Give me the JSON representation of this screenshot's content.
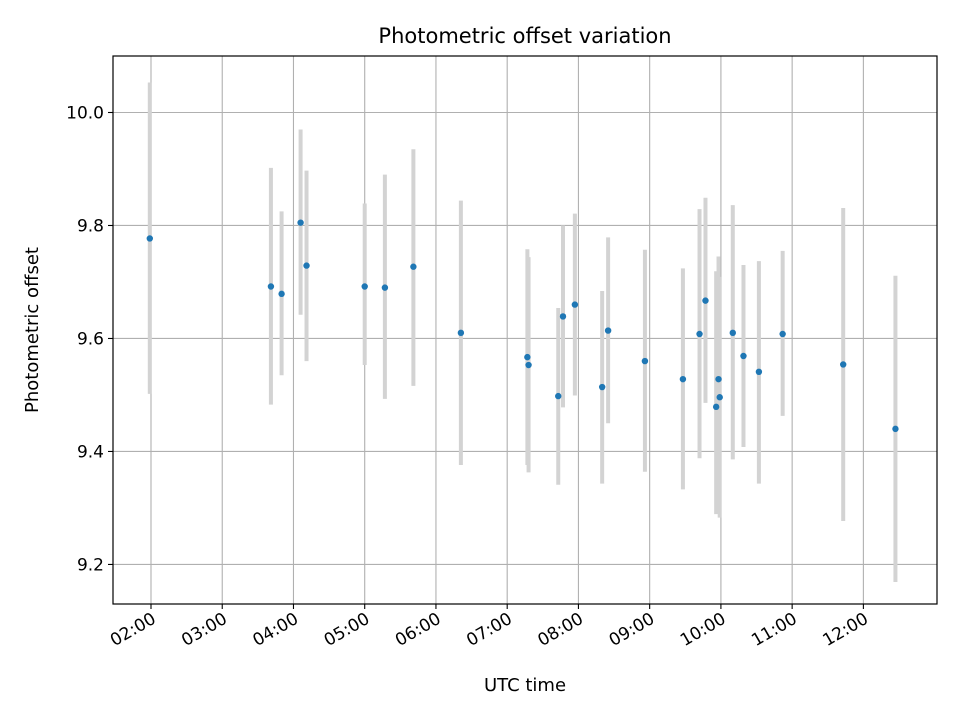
{
  "chart_data": {
    "type": "scatter",
    "title": "Photometric offset variation",
    "xlabel": "UTC time",
    "ylabel": "Photometric offset",
    "x_tick_labels": [
      "02:00",
      "03:00",
      "04:00",
      "05:00",
      "06:00",
      "07:00",
      "08:00",
      "09:00",
      "10:00",
      "11:00",
      "12:00"
    ],
    "x_tick_hours": [
      2,
      3,
      4,
      5,
      6,
      7,
      8,
      9,
      10,
      11,
      12
    ],
    "y_ticks": [
      9.2,
      9.4,
      9.6,
      9.8,
      10.0
    ],
    "y_tick_labels": [
      "9.2",
      "9.4",
      "9.6",
      "9.8",
      "10.0"
    ],
    "xlim": [
      "01:28",
      "13:02"
    ],
    "ylim": [
      9.13,
      10.1
    ],
    "grid": true,
    "colors": {
      "point": "#1f77b4",
      "errorbar": "#d3d3d3",
      "grid": "#b0b0b0"
    },
    "points": [
      {
        "time": "01:59",
        "y": 9.777,
        "ylow": 9.502,
        "yhigh": 10.053
      },
      {
        "time": "03:41",
        "y": 9.692,
        "ylow": 9.483,
        "yhigh": 9.902
      },
      {
        "time": "03:50",
        "y": 9.679,
        "ylow": 9.535,
        "yhigh": 9.825
      },
      {
        "time": "04:06",
        "y": 9.805,
        "ylow": 9.642,
        "yhigh": 9.97
      },
      {
        "time": "04:11",
        "y": 9.729,
        "ylow": 9.56,
        "yhigh": 9.897
      },
      {
        "time": "05:00",
        "y": 9.692,
        "ylow": 9.553,
        "yhigh": 9.839
      },
      {
        "time": "05:17",
        "y": 9.69,
        "ylow": 9.493,
        "yhigh": 9.89
      },
      {
        "time": "05:41",
        "y": 9.727,
        "ylow": 9.516,
        "yhigh": 9.935
      },
      {
        "time": "06:21",
        "y": 9.61,
        "ylow": 9.376,
        "yhigh": 9.844
      },
      {
        "time": "07:17",
        "y": 9.567,
        "ylow": 9.376,
        "yhigh": 9.758
      },
      {
        "time": "07:18",
        "y": 9.553,
        "ylow": 9.363,
        "yhigh": 9.744
      },
      {
        "time": "07:43",
        "y": 9.498,
        "ylow": 9.341,
        "yhigh": 9.654
      },
      {
        "time": "07:47",
        "y": 9.639,
        "ylow": 9.478,
        "yhigh": 9.8
      },
      {
        "time": "07:57",
        "y": 9.66,
        "ylow": 9.499,
        "yhigh": 9.821
      },
      {
        "time": "08:20",
        "y": 9.514,
        "ylow": 9.343,
        "yhigh": 9.684
      },
      {
        "time": "08:25",
        "y": 9.614,
        "ylow": 9.45,
        "yhigh": 9.779
      },
      {
        "time": "08:56",
        "y": 9.56,
        "ylow": 9.364,
        "yhigh": 9.757
      },
      {
        "time": "09:28",
        "y": 9.528,
        "ylow": 9.333,
        "yhigh": 9.724
      },
      {
        "time": "09:42",
        "y": 9.608,
        "ylow": 9.388,
        "yhigh": 9.829
      },
      {
        "time": "09:47",
        "y": 9.667,
        "ylow": 9.486,
        "yhigh": 9.849
      },
      {
        "time": "09:56",
        "y": 9.479,
        "ylow": 9.289,
        "yhigh": 9.719
      },
      {
        "time": "09:58",
        "y": 9.528,
        "ylow": 9.31,
        "yhigh": 9.745
      },
      {
        "time": "09:59",
        "y": 9.496,
        "ylow": 9.283,
        "yhigh": 9.709
      },
      {
        "time": "10:10",
        "y": 9.61,
        "ylow": 9.386,
        "yhigh": 9.836
      },
      {
        "time": "10:19",
        "y": 9.569,
        "ylow": 9.408,
        "yhigh": 9.73
      },
      {
        "time": "10:32",
        "y": 9.541,
        "ylow": 9.343,
        "yhigh": 9.737
      },
      {
        "time": "10:52",
        "y": 9.608,
        "ylow": 9.463,
        "yhigh": 9.755
      },
      {
        "time": "11:43",
        "y": 9.554,
        "ylow": 9.277,
        "yhigh": 9.831
      },
      {
        "time": "12:27",
        "y": 9.44,
        "ylow": 9.169,
        "yhigh": 9.711
      }
    ]
  }
}
